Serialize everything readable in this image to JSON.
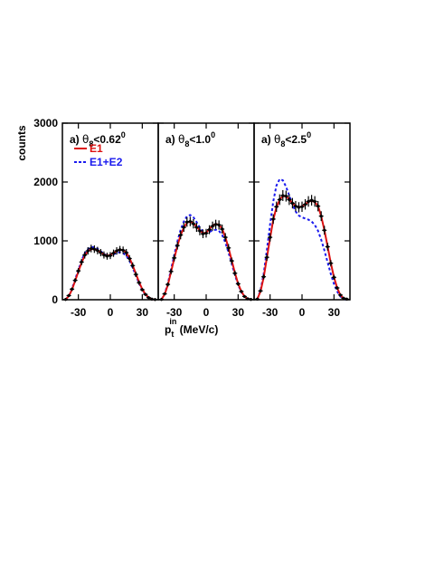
{
  "chart_data": {
    "type": "line",
    "ylabel": "counts",
    "xlabel": "p_t^in (MeV/c)",
    "xlabel_main": "p",
    "xlabel_sub": "t",
    "xlabel_sup": "in",
    "xlabel_unit": " (MeV/c)",
    "xlim": [
      -45,
      45
    ],
    "ylim": [
      0,
      3000
    ],
    "yticks": [
      0,
      1000,
      2000,
      3000
    ],
    "xticks": [
      -30,
      0,
      30
    ],
    "legend": {
      "placement": "top-left of first panel",
      "entries": [
        {
          "name": "E1",
          "color": "#dd1111",
          "style": "solid"
        },
        {
          "name": "E1+E2",
          "color": "#1a1aee",
          "style": "dotted"
        }
      ]
    },
    "colors": {
      "data": "#000000",
      "e1": "#dd1111",
      "e1e2": "#1a1aee"
    },
    "x": [
      -42,
      -39,
      -36,
      -33,
      -30,
      -27,
      -24,
      -21,
      -18,
      -15,
      -12,
      -9,
      -6,
      -3,
      0,
      3,
      6,
      9,
      12,
      15,
      18,
      21,
      24,
      27,
      30,
      33,
      36,
      39,
      42
    ],
    "panels": [
      {
        "label_prefix": "a) ",
        "label_theta": "θ",
        "label_sub": "8",
        "label_rest": "<0.62",
        "label_sup": "0",
        "data": [
          5,
          70,
          180,
          330,
          490,
          640,
          760,
          830,
          870,
          860,
          835,
          800,
          760,
          740,
          750,
          790,
          830,
          850,
          840,
          800,
          700,
          580,
          430,
          290,
          170,
          90,
          35,
          10,
          3
        ],
        "e1": [
          5,
          60,
          170,
          320,
          480,
          630,
          750,
          825,
          860,
          860,
          840,
          805,
          770,
          750,
          760,
          795,
          830,
          850,
          845,
          800,
          710,
          585,
          440,
          300,
          180,
          90,
          35,
          10,
          3
        ],
        "e1e2": [
          5,
          65,
          185,
          345,
          510,
          665,
          790,
          860,
          895,
          890,
          865,
          825,
          780,
          750,
          745,
          770,
          795,
          805,
          790,
          745,
          660,
          545,
          410,
          280,
          165,
          85,
          35,
          10,
          3
        ]
      },
      {
        "label_prefix": "a) ",
        "label_theta": "θ",
        "label_sub": "8",
        "label_rest": "<1.0",
        "label_sup": "0",
        "data": [
          5,
          100,
          260,
          480,
          710,
          920,
          1100,
          1230,
          1320,
          1330,
          1290,
          1230,
          1170,
          1120,
          1130,
          1190,
          1250,
          1280,
          1270,
          1200,
          1060,
          880,
          660,
          450,
          270,
          140,
          55,
          15,
          5
        ],
        "e1": [
          5,
          90,
          250,
          470,
          700,
          915,
          1095,
          1225,
          1310,
          1330,
          1300,
          1240,
          1180,
          1130,
          1140,
          1200,
          1260,
          1290,
          1275,
          1205,
          1065,
          880,
          665,
          455,
          275,
          140,
          55,
          15,
          5
        ],
        "e1e2": [
          5,
          100,
          275,
          510,
          760,
          990,
          1185,
          1330,
          1420,
          1440,
          1400,
          1320,
          1230,
          1160,
          1130,
          1150,
          1180,
          1190,
          1170,
          1100,
          970,
          805,
          610,
          420,
          255,
          130,
          52,
          15,
          5
        ]
      },
      {
        "label_prefix": "a) ",
        "label_theta": "θ",
        "label_sub": "8",
        "label_rest": "<2.5",
        "label_sup": "0",
        "data": [
          10,
          150,
          390,
          720,
          1060,
          1370,
          1580,
          1700,
          1770,
          1760,
          1700,
          1640,
          1590,
          1570,
          1580,
          1620,
          1670,
          1690,
          1670,
          1590,
          1420,
          1180,
          900,
          620,
          380,
          200,
          80,
          25,
          10
        ],
        "e1": [
          10,
          140,
          380,
          710,
          1050,
          1360,
          1570,
          1700,
          1760,
          1755,
          1705,
          1640,
          1590,
          1575,
          1585,
          1625,
          1665,
          1680,
          1660,
          1590,
          1420,
          1185,
          905,
          625,
          385,
          200,
          80,
          25,
          10
        ],
        "e1e2": [
          10,
          160,
          440,
          840,
          1280,
          1670,
          1940,
          2050,
          2030,
          1920,
          1770,
          1620,
          1500,
          1430,
          1400,
          1380,
          1360,
          1330,
          1270,
          1170,
          1020,
          840,
          635,
          440,
          270,
          140,
          56,
          18,
          6
        ]
      }
    ]
  }
}
